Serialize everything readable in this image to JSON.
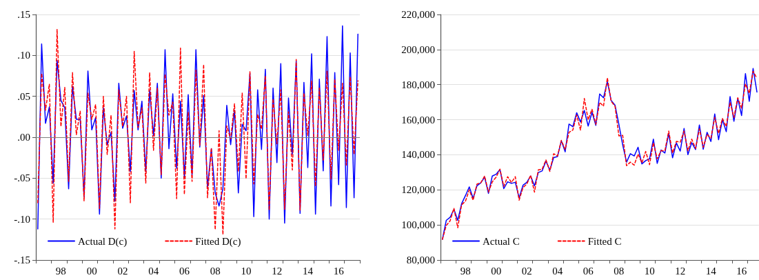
{
  "chart_data": [
    {
      "type": "line",
      "categories": [
        null,
        null,
        null,
        null,
        null,
        null,
        "98",
        null,
        null,
        null,
        null,
        null,
        null,
        null,
        "00",
        null,
        null,
        null,
        null,
        null,
        null,
        null,
        "02",
        null,
        null,
        null,
        null,
        null,
        null,
        null,
        "04",
        null,
        null,
        null,
        null,
        null,
        null,
        null,
        "06",
        null,
        null,
        null,
        null,
        null,
        null,
        null,
        "08",
        null,
        null,
        null,
        null,
        null,
        null,
        null,
        "10",
        null,
        null,
        null,
        null,
        null,
        null,
        null,
        "12",
        null,
        null,
        null,
        null,
        null,
        null,
        null,
        "14",
        null,
        null,
        null,
        null,
        null,
        null,
        null,
        "16",
        null,
        null,
        null,
        null,
        null
      ],
      "ylim": [
        -0.15,
        0.15
      ],
      "yticks": [
        {
          "value": -0.15,
          "label": "-.15"
        },
        {
          "value": -0.1,
          "label": "-.10"
        },
        {
          "value": -0.05,
          "label": "-.05"
        },
        {
          "value": 0,
          "label": ".00"
        },
        {
          "value": 0.05,
          "label": ".05"
        },
        {
          "value": 0.1,
          "label": ".10"
        },
        {
          "value": 0.15,
          "label": ".15"
        }
      ],
      "grid": "y",
      "legend": "bottom",
      "marker": "none",
      "ref_lines": [
        {
          "axis": "y",
          "value": 0,
          "color": "#808080"
        }
      ],
      "series": [
        {
          "name": "Actual D(c)",
          "color": "#0000ff",
          "line_style": "solid",
          "values": [
            -0.112,
            0.114,
            0.017,
            0.037,
            -0.056,
            0.094,
            0.045,
            0.036,
            -0.063,
            0.062,
            0.022,
            0.022,
            -0.073,
            0.081,
            0.009,
            0.024,
            -0.094,
            0.036,
            -0.009,
            0.006,
            -0.078,
            0.066,
            0.011,
            0.026,
            -0.042,
            0.057,
            0.009,
            0.044,
            -0.042,
            0.057,
            0.002,
            0.066,
            -0.05,
            0.107,
            -0.014,
            0.053,
            -0.038,
            0.044,
            -0.049,
            0.052,
            -0.046,
            0.107,
            -0.012,
            0.051,
            -0.061,
            -0.014,
            -0.068,
            -0.084,
            -0.063,
            0.039,
            -0.009,
            0.033,
            -0.068,
            0.016,
            0.008,
            0.078,
            -0.097,
            0.058,
            -0.015,
            0.083,
            -0.1,
            0.06,
            -0.031,
            0.09,
            -0.105,
            0.048,
            -0.021,
            0.093,
            -0.093,
            0.067,
            -0.037,
            0.102,
            -0.094,
            0.071,
            -0.041,
            0.123,
            -0.084,
            0.079,
            -0.058,
            0.136,
            -0.086,
            0.103,
            -0.074,
            0.126
          ]
        },
        {
          "name": "Fitted D(c)",
          "color": "#ff0000",
          "line_style": "dashed",
          "values": [
            -0.08,
            0.078,
            0.033,
            0.065,
            -0.104,
            0.132,
            0.013,
            0.061,
            -0.054,
            0.079,
            0.003,
            0.032,
            -0.078,
            0.054,
            0.022,
            0.04,
            -0.087,
            0.05,
            -0.021,
            0.027,
            -0.112,
            0.058,
            0.013,
            0.05,
            -0.08,
            0.105,
            0.012,
            0.036,
            -0.056,
            0.079,
            -0.016,
            0.06,
            -0.046,
            0.077,
            0.027,
            0.043,
            -0.075,
            0.109,
            -0.07,
            0.031,
            -0.054,
            0.082,
            -0.01,
            0.089,
            -0.074,
            -0.013,
            -0.113,
            0.008,
            -0.119,
            0.014,
            -0.002,
            0.041,
            -0.042,
            0.054,
            -0.051,
            0.08,
            -0.057,
            0.028,
            0.01,
            0.075,
            -0.089,
            0.047,
            -0.008,
            0.058,
            -0.088,
            0.031,
            -0.04,
            0.095,
            -0.089,
            0.054,
            0.002,
            0.069,
            -0.06,
            0.06,
            -0.028,
            0.081,
            -0.051,
            0.071,
            -0.016,
            0.066,
            -0.034,
            0.074,
            -0.021,
            0.069
          ]
        }
      ]
    },
    {
      "type": "line",
      "categories": [
        null,
        null,
        null,
        null,
        null,
        null,
        "98",
        null,
        null,
        null,
        null,
        null,
        null,
        null,
        "00",
        null,
        null,
        null,
        null,
        null,
        null,
        null,
        "02",
        null,
        null,
        null,
        null,
        null,
        null,
        null,
        "04",
        null,
        null,
        null,
        null,
        null,
        null,
        null,
        "06",
        null,
        null,
        null,
        null,
        null,
        null,
        null,
        "08",
        null,
        null,
        null,
        null,
        null,
        null,
        null,
        "10",
        null,
        null,
        null,
        null,
        null,
        null,
        null,
        "12",
        null,
        null,
        null,
        null,
        null,
        null,
        null,
        "14",
        null,
        null,
        null,
        null,
        null,
        null,
        null,
        "16",
        null,
        null,
        null,
        null
      ],
      "ylim": [
        80000,
        220000
      ],
      "yticks": [
        {
          "value": 80000,
          "label": "80,000"
        },
        {
          "value": 100000,
          "label": "100,000"
        },
        {
          "value": 120000,
          "label": "120,000"
        },
        {
          "value": 140000,
          "label": "140,000"
        },
        {
          "value": 160000,
          "label": "160,000"
        },
        {
          "value": 180000,
          "label": "180,000"
        },
        {
          "value": 200000,
          "label": "200,000"
        },
        {
          "value": 220000,
          "label": "220,000"
        }
      ],
      "grid": "y",
      "legend": "bottom",
      "marker": "none",
      "series": [
        {
          "name": "Actual C",
          "color": "#0000ff",
          "line_style": "solid",
          "values": [
            91800,
            102600,
            104300,
            108900,
            102600,
            112100,
            116700,
            121700,
            115200,
            122300,
            124000,
            127200,
            118000,
            127900,
            128900,
            131600,
            120700,
            124600,
            123700,
            124300,
            115400,
            122600,
            124300,
            127900,
            122300,
            129900,
            130800,
            136400,
            131200,
            138400,
            139000,
            148000,
            141700,
            157500,
            156000,
            164000,
            158700,
            165300,
            156400,
            164200,
            156800,
            174700,
            172500,
            181700,
            170900,
            168300,
            157400,
            145600,
            135800,
            140600,
            139300,
            144300,
            134800,
            136700,
            137700,
            148900,
            135100,
            142700,
            141000,
            152200,
            138300,
            146700,
            142100,
            155000,
            140100,
            146900,
            143000,
            157000,
            143200,
            152800,
            147600,
            163300,
            148600,
            160000,
            153200,
            173200,
            159100,
            172100,
            162400,
            186300,
            170500,
            189200,
            175800
          ]
        },
        {
          "name": "Fitted C",
          "color": "#ff0000",
          "line_style": "dashed",
          "values": [
            91800,
            99700,
            102300,
            109500,
            98400,
            111500,
            113500,
            120000,
            114100,
            123300,
            124000,
            127900,
            118700,
            124600,
            127200,
            131800,
            122000,
            127500,
            124200,
            127500,
            114100,
            121300,
            123300,
            128300,
            118700,
            131400,
            131800,
            137100,
            130500,
            140600,
            139300,
            148200,
            143000,
            152800,
            154100,
            162700,
            154100,
            172100,
            160000,
            166000,
            157400,
            169900,
            167700,
            183900,
            170500,
            167700,
            150800,
            151100,
            133800,
            135800,
            134100,
            140400,
            135400,
            141900,
            134400,
            146900,
            137700,
            142300,
            142300,
            153500,
            141000,
            147600,
            147200,
            153500,
            142300,
            148900,
            143600,
            154800,
            144300,
            151500,
            149500,
            161300,
            152200,
            160700,
            156100,
            169900,
            161300,
            172500,
            166600,
            180400,
            175100,
            187600,
            183600
          ]
        }
      ]
    }
  ]
}
